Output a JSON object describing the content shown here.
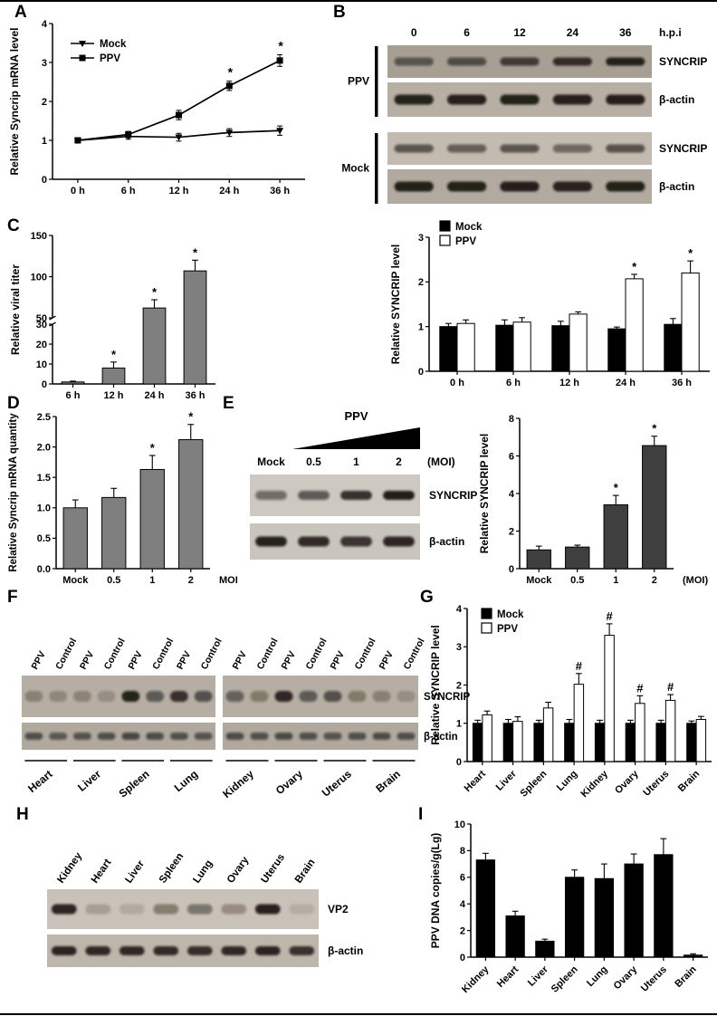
{
  "panels": {
    "a": {
      "label": "A"
    },
    "b": {
      "label": "B"
    },
    "c": {
      "label": "C"
    },
    "d": {
      "label": "D"
    },
    "e": {
      "label": "E"
    },
    "f": {
      "label": "F"
    },
    "g": {
      "label": "G"
    },
    "h": {
      "label": "H"
    },
    "i": {
      "label": "I"
    }
  },
  "blots": {
    "b": {
      "timepoints": [
        "0",
        "6",
        "12",
        "24",
        "36"
      ],
      "time_unit_label": "h.p.i",
      "groups": [
        {
          "group_label": "PPV",
          "strips": [
            {
              "target": "SYNCRIP",
              "film_color": "#a89f93",
              "band_intensities": [
                0.55,
                0.6,
                0.72,
                0.82,
                0.92
              ]
            },
            {
              "target": "β-actin",
              "film_color": "#b7afa4",
              "band_intensities": [
                0.92,
                0.9,
                0.93,
                0.9,
                0.91
              ]
            }
          ]
        },
        {
          "group_label": "Mock",
          "strips": [
            {
              "target": "SYNCRIP",
              "film_color": "#c3bbb0",
              "band_intensities": [
                0.6,
                0.55,
                0.6,
                0.5,
                0.62
              ]
            },
            {
              "target": "β-actin",
              "film_color": "#b2aa9f",
              "band_intensities": [
                0.93,
                0.92,
                0.9,
                0.88,
                0.92
              ]
            }
          ]
        }
      ]
    },
    "e": {
      "gradient_label": "PPV",
      "lane_labels": [
        "Mock",
        "0.5",
        "1",
        "2"
      ],
      "dose_unit_label": "(MOI)",
      "strips": [
        {
          "target": "SYNCRIP",
          "film_color": "#cdc8c0",
          "band_intensities": [
            0.5,
            0.6,
            0.82,
            0.95
          ]
        },
        {
          "target": "β-actin",
          "film_color": "#c9c4bc",
          "band_intensities": [
            0.92,
            0.85,
            0.8,
            0.88
          ]
        }
      ]
    },
    "f": {
      "condition_labels": [
        "PPV",
        "Control"
      ],
      "tissues": [
        "Heart",
        "Liver",
        "Spleen",
        "Lung",
        "Kidney",
        "Ovary",
        "Uterus",
        "Brain"
      ],
      "strips": [
        {
          "target": "SYNCRIP",
          "film_color": "#b6aea2",
          "band_intensities": [
            0.3,
            0.22,
            0.25,
            0.18,
            0.92,
            0.55,
            0.8,
            0.6,
            0.5,
            0.35,
            0.85,
            0.55,
            0.6,
            0.35,
            0.28,
            0.18
          ]
        },
        {
          "target": "β-actin",
          "film_color": "#b1a99e",
          "band_intensities": [
            0.6,
            0.55,
            0.58,
            0.6,
            0.65,
            0.62,
            0.6,
            0.58,
            0.62,
            0.6,
            0.63,
            0.6,
            0.58,
            0.6,
            0.62,
            0.6
          ]
        }
      ]
    },
    "h": {
      "lane_labels": [
        "Kidney",
        "Heart",
        "Liver",
        "Spleen",
        "Lung",
        "Ovary",
        "Uterus",
        "Brain"
      ],
      "strips": [
        {
          "target": "VP2",
          "film_color": "#c9c2b8",
          "band_intensities": [
            0.88,
            0.18,
            0.12,
            0.4,
            0.45,
            0.28,
            0.9,
            0.1
          ]
        },
        {
          "target": "β-actin",
          "film_color": "#beb6ab",
          "band_intensities": [
            0.88,
            0.85,
            0.86,
            0.84,
            0.82,
            0.85,
            0.88,
            0.8
          ]
        }
      ]
    }
  },
  "chart_data": [
    {
      "id": "chart-a",
      "type": "line",
      "title": "",
      "ylabel": "Relative Syncrip mRNA level",
      "categories": [
        "0 h",
        "6 h",
        "12 h",
        "24 h",
        "36 h"
      ],
      "ylim": [
        0,
        4
      ],
      "yticks": [
        0,
        1,
        2,
        3,
        4
      ],
      "grid": false,
      "legend_position": "top-left",
      "series": [
        {
          "name": "Mock",
          "marker": "triangle-down",
          "values": [
            1.0,
            1.1,
            1.08,
            1.2,
            1.25
          ],
          "errors": [
            0.05,
            0.07,
            0.1,
            0.1,
            0.12
          ],
          "annotations": [
            "",
            "",
            "",
            "",
            ""
          ]
        },
        {
          "name": "PPV",
          "marker": "square",
          "values": [
            1.0,
            1.15,
            1.65,
            2.4,
            3.05
          ],
          "errors": [
            0.05,
            0.08,
            0.12,
            0.12,
            0.15
          ],
          "annotations": [
            "",
            "",
            "",
            "*",
            "*"
          ]
        }
      ]
    },
    {
      "id": "chart-b",
      "type": "bar",
      "ylabel": "Relative SYNCRIP level",
      "categories": [
        "0 h",
        "6 h",
        "12 h",
        "24 h",
        "36 h"
      ],
      "ylim": [
        0,
        3
      ],
      "yticks": [
        0,
        1,
        2,
        3
      ],
      "grid": false,
      "legend_position": "top-left",
      "series": [
        {
          "name": "Mock",
          "color": "#000000",
          "values": [
            1.0,
            1.03,
            1.02,
            0.95,
            1.05
          ],
          "errors": [
            0.07,
            0.12,
            0.1,
            0.04,
            0.13
          ],
          "annotations": [
            "",
            "",
            "",
            "",
            ""
          ]
        },
        {
          "name": "PPV",
          "color": "#ffffff",
          "values": [
            1.07,
            1.1,
            1.28,
            2.07,
            2.2
          ],
          "errors": [
            0.08,
            0.1,
            0.05,
            0.1,
            0.27
          ],
          "annotations": [
            "",
            "",
            "",
            "*",
            "*"
          ]
        }
      ]
    },
    {
      "id": "chart-c",
      "type": "bar",
      "ylabel": "Relative viral titer",
      "categories": [
        "6 h",
        "12 h",
        "24 h",
        "36 h"
      ],
      "values": [
        1,
        8,
        62,
        107
      ],
      "errors": [
        0.4,
        3,
        10,
        13
      ],
      "annotations": [
        "",
        "*",
        "*",
        "*"
      ],
      "bar_color": "#7f7f7f",
      "grid": false,
      "axis_break": {
        "lower_lim": [
          0,
          30
        ],
        "lower_ticks": [
          0,
          10,
          20,
          30
        ],
        "upper_lim": [
          50,
          150
        ],
        "upper_ticks": [
          50,
          100,
          150
        ]
      }
    },
    {
      "id": "chart-d",
      "type": "bar",
      "ylabel": "Relative Syncrip mRNA quantity",
      "xlabel": "MOI",
      "categories": [
        "Mock",
        "0.5",
        "1",
        "2"
      ],
      "values": [
        1.0,
        1.17,
        1.63,
        2.12
      ],
      "errors": [
        0.13,
        0.15,
        0.23,
        0.25
      ],
      "annotations": [
        "",
        "",
        "*",
        "*"
      ],
      "ylim": [
        0,
        2.5
      ],
      "yticks": [
        0,
        0.5,
        1,
        1.5,
        2,
        2.5
      ],
      "ytick_decimals": 1,
      "bar_color": "#7f7f7f",
      "grid": false
    },
    {
      "id": "chart-e",
      "type": "bar",
      "ylabel": "Relative SYNCRIP level",
      "xlabel": "(MOI)",
      "categories": [
        "Mock",
        "0.5",
        "1",
        "2"
      ],
      "values": [
        1.0,
        1.15,
        3.4,
        6.55
      ],
      "errors": [
        0.2,
        0.1,
        0.5,
        0.5
      ],
      "annotations": [
        "",
        "",
        "*",
        "*"
      ],
      "ylim": [
        0,
        8
      ],
      "yticks": [
        0,
        2,
        4,
        6,
        8
      ],
      "bar_color": "#3f3f3f",
      "grid": false
    },
    {
      "id": "chart-g",
      "type": "bar",
      "ylabel": "Relative SYNCRIP level",
      "categories": [
        "Heart",
        "Liver",
        "Spleen",
        "Lung",
        "Kidney",
        "Ovary",
        "Uterus",
        "Brain"
      ],
      "ylim": [
        0,
        4
      ],
      "yticks": [
        0,
        1,
        2,
        3,
        4
      ],
      "xtick_rotation": -45,
      "grid": false,
      "legend_position": "top-left",
      "series": [
        {
          "name": "Mock",
          "color": "#000000",
          "values": [
            1.0,
            1.0,
            1.0,
            1.0,
            1.0,
            1.0,
            1.0,
            1.0
          ],
          "errors": [
            0.08,
            0.1,
            0.08,
            0.1,
            0.08,
            0.08,
            0.08,
            0.06
          ],
          "annotations": [
            "",
            "",
            "",
            "",
            "",
            "",
            "",
            ""
          ]
        },
        {
          "name": "PPV",
          "color": "#ffffff",
          "values": [
            1.22,
            1.05,
            1.4,
            2.02,
            3.3,
            1.52,
            1.6,
            1.1
          ],
          "errors": [
            0.1,
            0.12,
            0.15,
            0.28,
            0.3,
            0.2,
            0.15,
            0.08
          ],
          "annotations": [
            "",
            "",
            "",
            "#",
            "#",
            "#",
            "#",
            ""
          ]
        }
      ]
    },
    {
      "id": "chart-i",
      "type": "bar",
      "ylabel": "PPV DNA copies/g(Lg)",
      "categories": [
        "Kidney",
        "Heart",
        "Liver",
        "Spleen",
        "Lung",
        "Ovary",
        "Uterus",
        "Brain"
      ],
      "values": [
        7.3,
        3.1,
        1.2,
        6.0,
        5.9,
        7.0,
        7.7,
        0.15
      ],
      "errors": [
        0.5,
        0.35,
        0.15,
        0.55,
        1.1,
        0.75,
        1.2,
        0.1
      ],
      "annotations": [
        "",
        "",
        "",
        "",
        "",
        "",
        "",
        ""
      ],
      "ylim": [
        0,
        10
      ],
      "yticks": [
        0,
        2,
        4,
        6,
        8,
        10
      ],
      "xtick_rotation": -45,
      "bar_color": "#000000",
      "grid": false
    }
  ]
}
